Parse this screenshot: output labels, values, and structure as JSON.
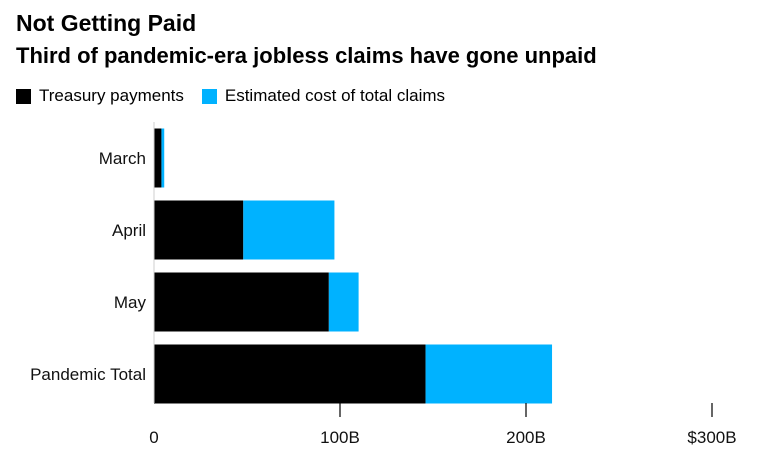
{
  "chart_data": {
    "type": "bar",
    "orientation": "horizontal",
    "stacked": true,
    "title": "Not Getting Paid",
    "subtitle": "Third of pandemic-era jobless claims have gone unpaid",
    "categories": [
      "March",
      "April",
      "May",
      "Pandemic Total"
    ],
    "series": [
      {
        "name": "Treasury payments",
        "color": "#000000",
        "values": [
          4,
          48,
          94,
          146
        ]
      },
      {
        "name": "Estimated cost of total claims",
        "color": "#00b2ff",
        "values": [
          1.5,
          49,
          16,
          68
        ]
      }
    ],
    "xlim": [
      0,
      300
    ],
    "x_ticks": [
      0,
      100,
      200,
      300
    ],
    "x_tick_labels": [
      "0",
      "100B",
      "200B",
      "$300B"
    ],
    "legend_position": "top-left",
    "grid": false
  }
}
